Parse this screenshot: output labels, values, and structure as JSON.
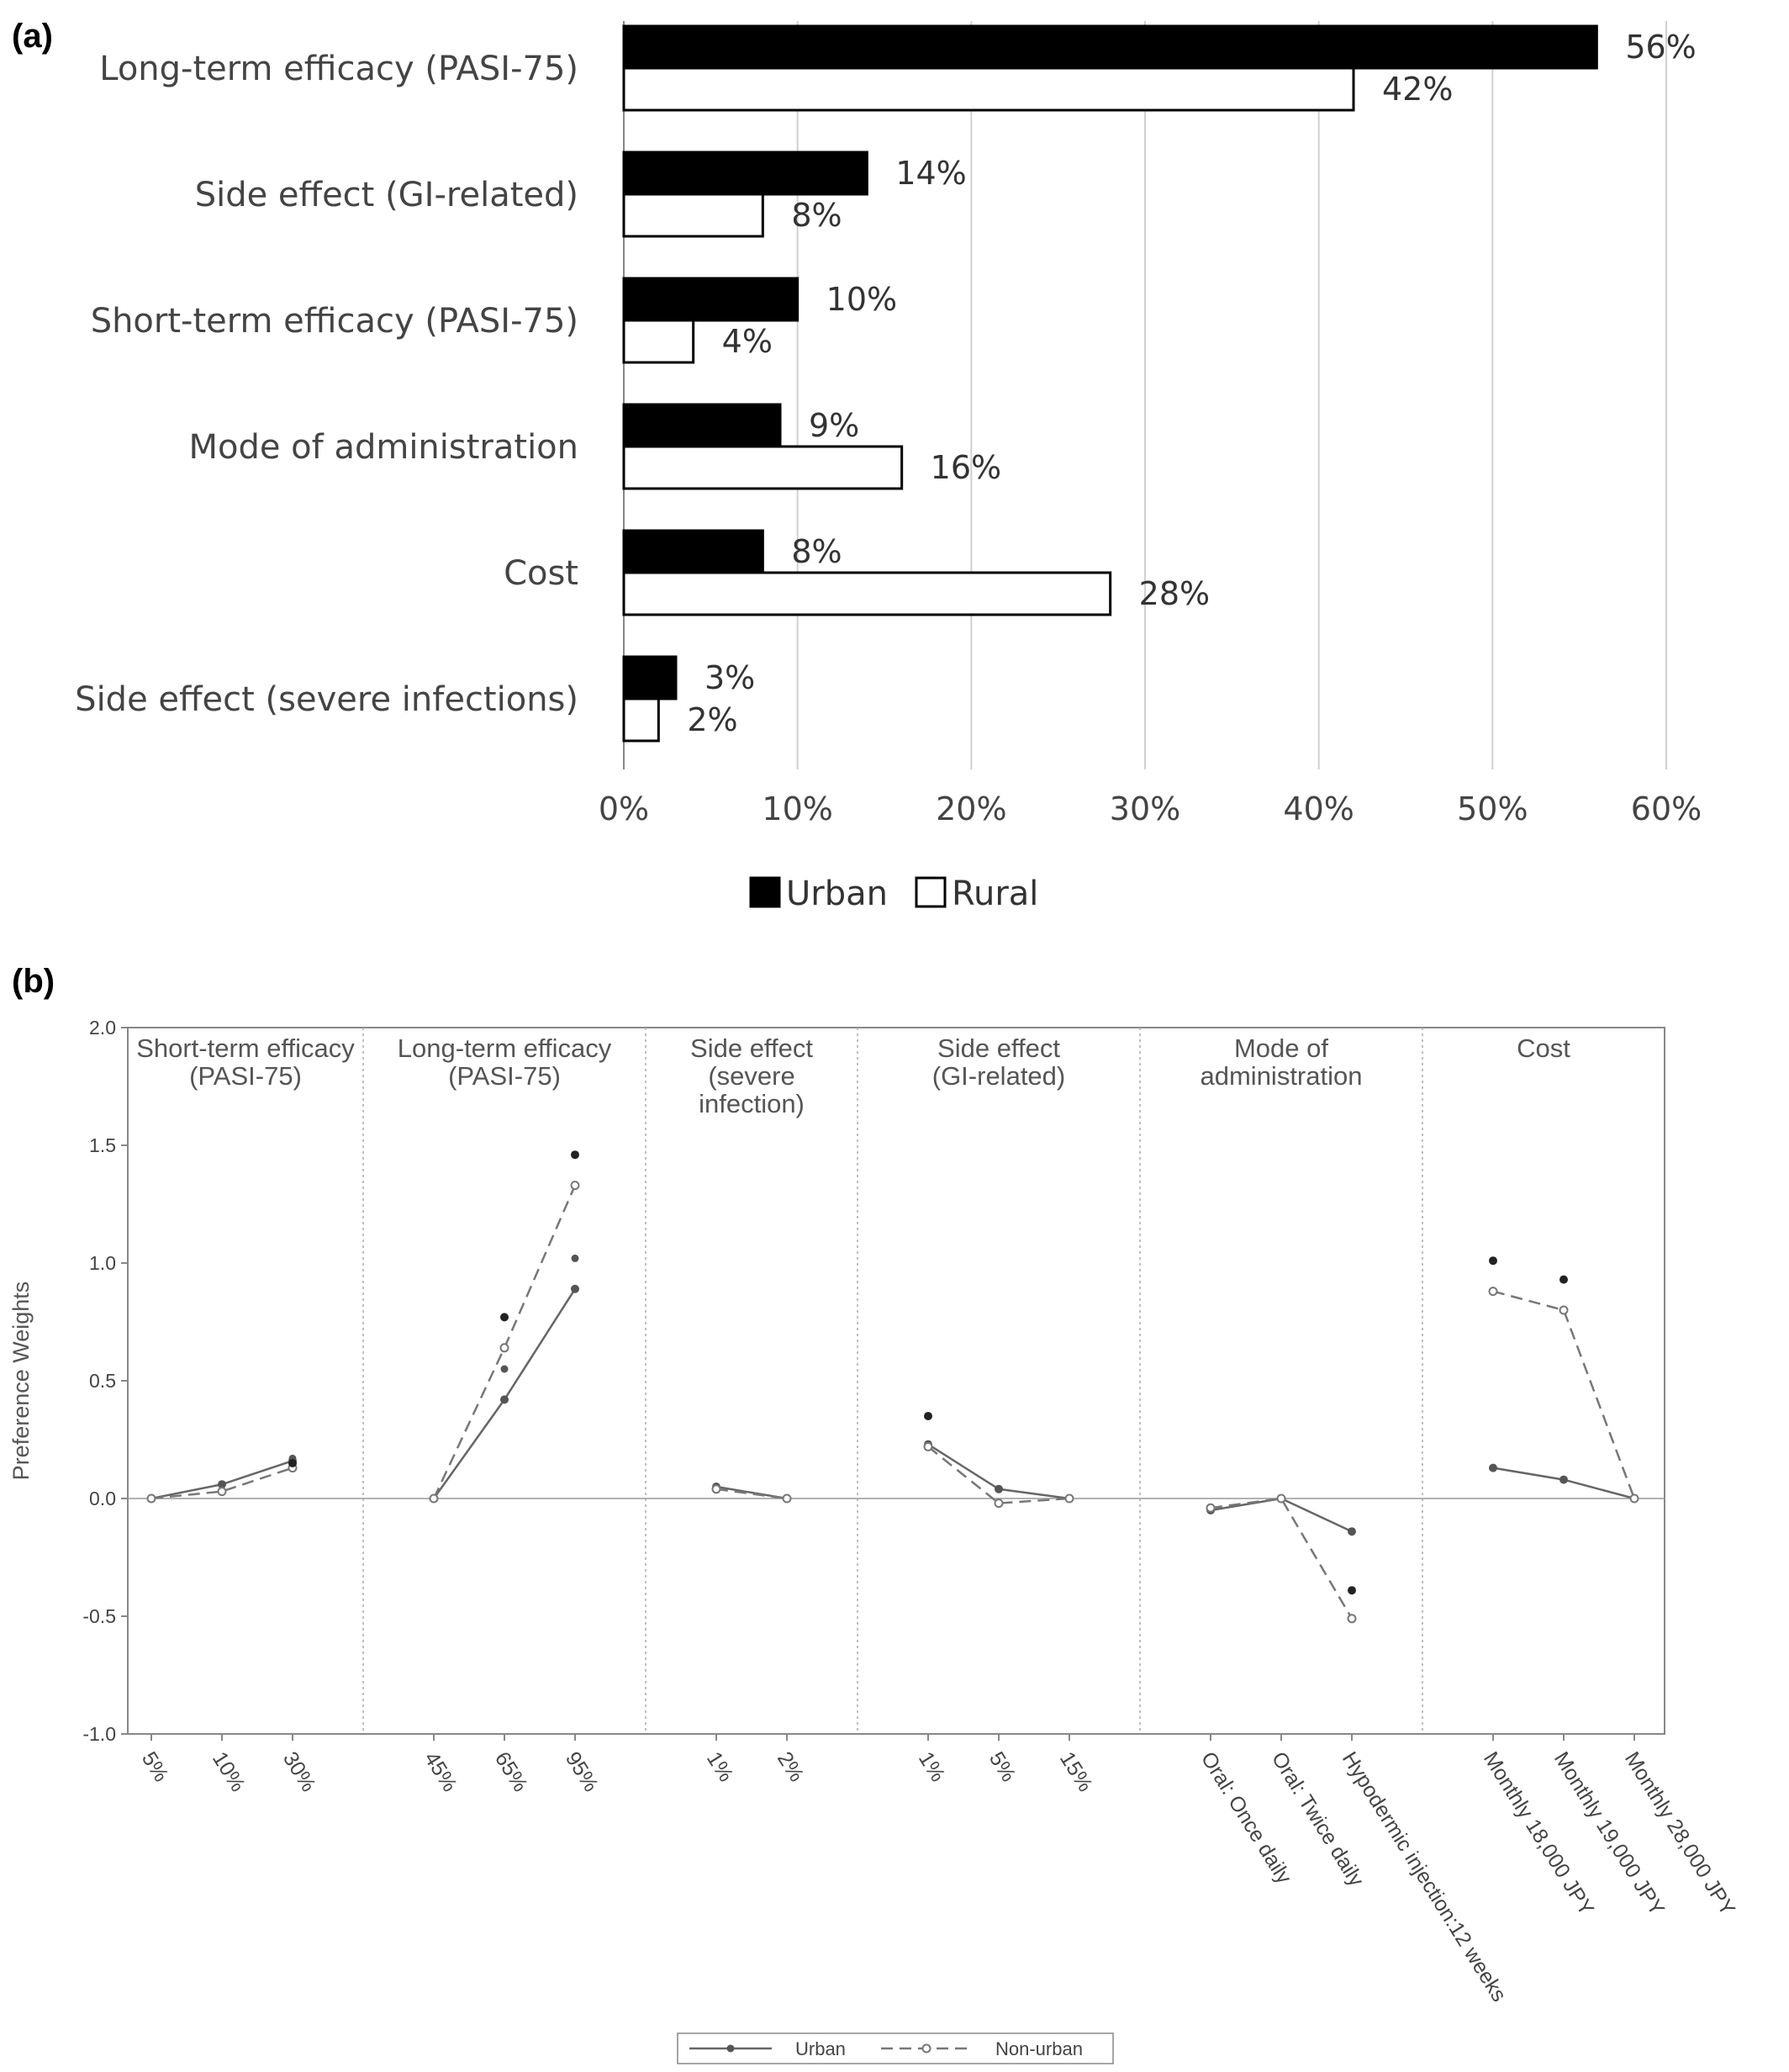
{
  "chart_data": [
    {
      "panel_label": "(a)",
      "type": "bar",
      "orientation": "horizontal",
      "categories": [
        "Long-term efficacy (PASI-75)",
        "Side effect (GI-related)",
        "Short-term efficacy (PASI-75)",
        "Mode of administration",
        "Cost",
        "Side effect (severe infections)"
      ],
      "series": [
        {
          "name": "Urban",
          "color": "#000000",
          "values": [
            56,
            14,
            10,
            9,
            8,
            3
          ],
          "labels": [
            "56%",
            "14%",
            "10%",
            "9%",
            "8%",
            "3%"
          ]
        },
        {
          "name": "Rural",
          "color": "#ffffff",
          "values": [
            42,
            8,
            4,
            16,
            28,
            2
          ],
          "labels": [
            "42%",
            "8%",
            "4%",
            "16%",
            "28%",
            "2%"
          ]
        }
      ],
      "xlim": [
        0,
        60
      ],
      "xticks": [
        "0%",
        "10%",
        "20%",
        "30%",
        "40%",
        "50%",
        "60%"
      ],
      "grid": true,
      "legend_position": "bottom"
    },
    {
      "panel_label": "(b)",
      "type": "line",
      "ylabel": "Preference Weights",
      "ylim": [
        -1.0,
        2.0
      ],
      "yticks": [
        "-1.0",
        "-0.5",
        "0.0",
        "0.5",
        "1.0",
        "1.5",
        "2.0"
      ],
      "legend_position": "bottom",
      "series_names": [
        "Urban",
        "Non-urban"
      ],
      "sections": [
        {
          "title": [
            "Short-term efficacy",
            "(PASI-75)"
          ],
          "levels": [
            "5%",
            "10%",
            "30%"
          ],
          "urban": [
            0.0,
            0.06,
            0.16
          ],
          "non_urban": [
            0.0,
            0.03,
            0.13
          ],
          "extra_urban": [
            0.17
          ],
          "extra_non_urban": [
            0.15
          ]
        },
        {
          "title": [
            "Long-term efficacy",
            "(PASI-75)"
          ],
          "levels": [
            "45%",
            "65%",
            "95%"
          ],
          "urban": [
            0.0,
            0.42,
            0.89
          ],
          "non_urban": [
            0.0,
            0.64,
            1.33
          ],
          "extra_urban": [
            0.55,
            1.02
          ],
          "extra_non_urban": [
            0.77,
            1.46
          ]
        },
        {
          "title": [
            "Side effect",
            "(severe",
            "infection)"
          ],
          "levels": [
            "1%",
            "2%"
          ],
          "urban": [
            0.05,
            0.0
          ],
          "non_urban": [
            0.04,
            0.0
          ],
          "extra_urban": [],
          "extra_non_urban": []
        },
        {
          "title": [
            "Side effect",
            "(GI-related)"
          ],
          "levels": [
            "1%",
            "5%",
            "15%"
          ],
          "urban": [
            0.23,
            0.04,
            0.0
          ],
          "non_urban": [
            0.22,
            -0.02,
            0.0
          ],
          "extra_urban": [],
          "extra_non_urban": [
            0.35
          ]
        },
        {
          "title": [
            "Mode of",
            "administration"
          ],
          "levels": [
            "Oral: Once daily",
            "Oral: Twice daily",
            "Hypodermic injection:12 weeks"
          ],
          "urban": [
            -0.05,
            0.0,
            -0.14
          ],
          "non_urban": [
            -0.04,
            0.0,
            -0.51
          ],
          "extra_urban": [],
          "extra_non_urban": [
            -0.39
          ]
        },
        {
          "title": [
            "Cost"
          ],
          "levels": [
            "Monthly 18,000 JPY",
            "Monthly 19,000 JPY",
            "Monthly 28,000 JPY"
          ],
          "urban": [
            0.13,
            0.08,
            0.0
          ],
          "non_urban": [
            0.88,
            0.8,
            0.0
          ],
          "extra_urban": [],
          "extra_non_urban": [
            1.01,
            0.93
          ]
        }
      ]
    }
  ]
}
